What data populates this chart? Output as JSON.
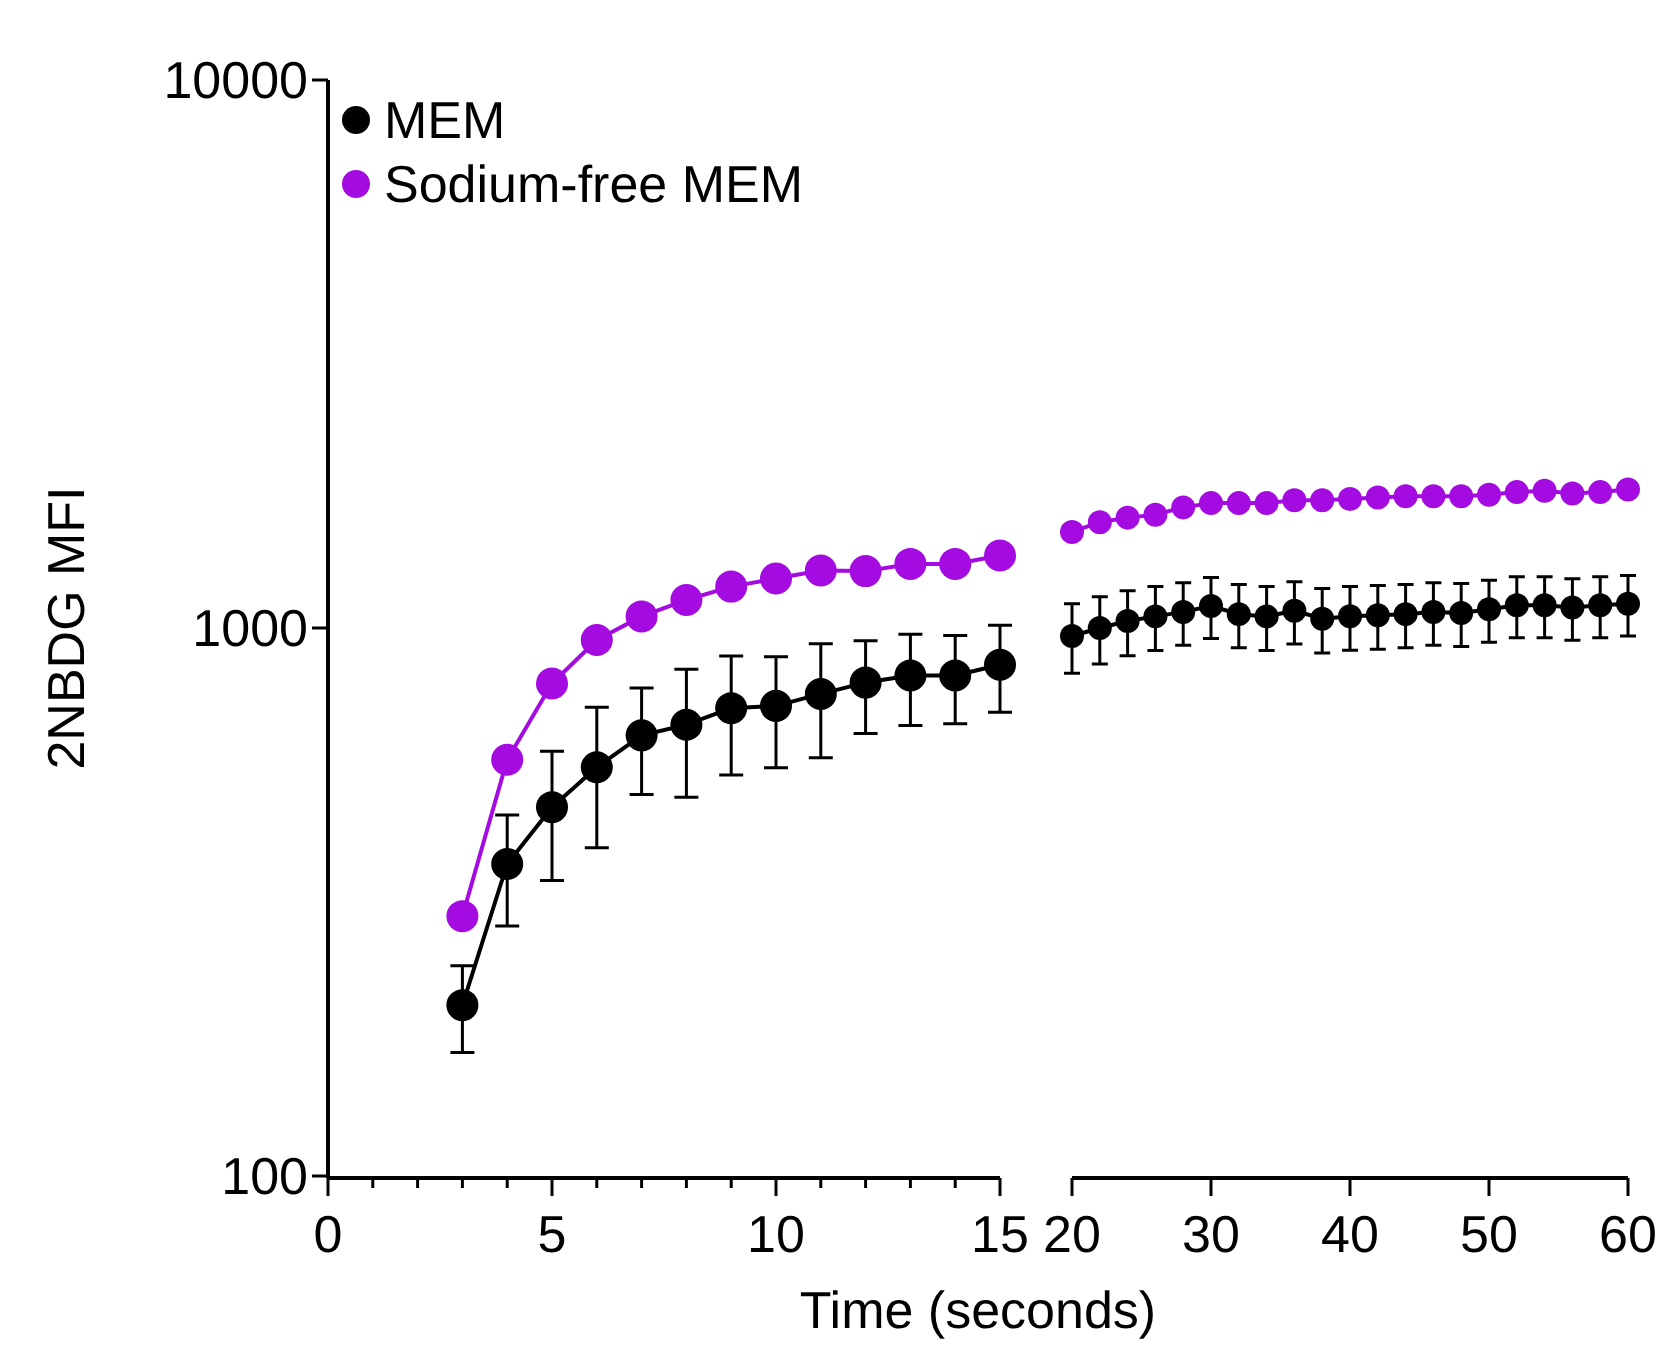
{
  "chart_data": [
    {
      "type": "line",
      "ylabel": "2NBDG MFI",
      "xlabel": "Time (seconds)",
      "log": "y",
      "legend": "top left",
      "marker": "circle",
      "line_style": "solid",
      "xlim": [
        0,
        15
      ],
      "xticks": [
        0,
        {
          "value": 1,
          "label": null
        },
        {
          "value": 2,
          "label": null
        },
        {
          "value": 3,
          "label": null
        },
        {
          "value": 4,
          "label": null
        },
        5,
        {
          "value": 6,
          "label": null
        },
        {
          "value": 7,
          "label": null
        },
        {
          "value": 8,
          "label": null
        },
        {
          "value": 9,
          "label": null
        },
        10,
        {
          "value": 11,
          "label": null
        },
        {
          "value": 12,
          "label": null
        },
        {
          "value": 13,
          "label": null
        },
        {
          "value": 14,
          "label": null
        },
        15
      ],
      "ylim": [
        100,
        10000
      ],
      "yticks": [
        100,
        1000,
        10000
      ],
      "x": [
        3,
        4,
        5,
        6,
        7,
        8,
        9,
        10,
        11,
        12,
        13,
        14,
        15
      ],
      "series": [
        {
          "name": "MEM",
          "color": "#000000",
          "values": [
            205,
            371,
            471,
            557,
            637,
            666,
            714,
            721,
            758,
            795,
            819,
            819,
            857
          ],
          "errors": [
            37,
            85,
            125,
            160,
            140,
            175,
            175,
            165,
            178,
            153,
            155,
            150,
            155
          ]
        },
        {
          "name": "Sodium-free MEM",
          "color": "#a30be0",
          "values": [
            298,
            575,
            792,
            951,
            1050,
            1125,
            1190,
            1231,
            1273,
            1270,
            1309,
            1309,
            1356
          ]
        }
      ]
    },
    {
      "type": "line",
      "tick_labels": "x",
      "log": "y",
      "marker": "circle",
      "line_style": "solid",
      "xlim": [
        20,
        60
      ],
      "xticks": [
        20,
        30,
        40,
        50,
        60
      ],
      "ylim": [
        100,
        10000
      ],
      "x": [
        20,
        22,
        24,
        26,
        28,
        30,
        32,
        34,
        36,
        38,
        40,
        42,
        44,
        46,
        48,
        50,
        52,
        54,
        56,
        58,
        60
      ],
      "series": [
        {
          "color": "#000000",
          "values": [
            967,
            1000,
            1030,
            1050,
            1070,
            1097,
            1060,
            1050,
            1075,
            1040,
            1051,
            1055,
            1060,
            1070,
            1065,
            1082,
            1100,
            1100,
            1090,
            1100,
            1107
          ],
          "errors": [
            140,
            140,
            140,
            140,
            140,
            140,
            140,
            140,
            140,
            140,
            140,
            140,
            140,
            140,
            140,
            140,
            140,
            140,
            140,
            140,
            140
          ]
        },
        {
          "color": "#a30be0",
          "values": [
            1497,
            1560,
            1590,
            1610,
            1660,
            1690,
            1690,
            1690,
            1710,
            1710,
            1720,
            1730,
            1740,
            1740,
            1740,
            1750,
            1770,
            1780,
            1760,
            1770,
            1790
          ]
        }
      ]
    }
  ]
}
